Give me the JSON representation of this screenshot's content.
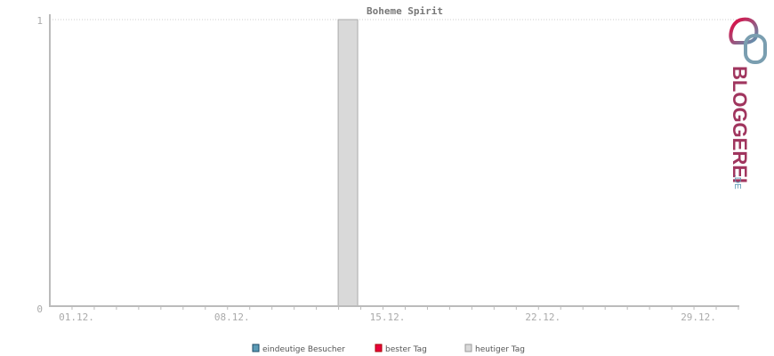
{
  "chart_data": {
    "type": "bar",
    "title": "Boheme Spirit",
    "xlabel": "",
    "ylabel": "",
    "ylim": [
      0,
      1
    ],
    "y_ticks": [
      "0",
      "1"
    ],
    "x_tick_labels": [
      "01.12.",
      "08.12.",
      "15.12.",
      "22.12.",
      "29.12."
    ],
    "x_tick_days": [
      1,
      8,
      15,
      22,
      29
    ],
    "days_in_month": 31,
    "grid": "dotted line at y=1",
    "legend_position": "bottom",
    "legend": [
      {
        "label": "eindeutige Besucher",
        "color": "#5b9ab5"
      },
      {
        "label": "bester Tag",
        "color": "#e8003c"
      },
      {
        "label": "heutiger Tag",
        "color": "#d9d9d9"
      }
    ],
    "series": [
      {
        "name": "heutiger Tag",
        "points": [
          {
            "day": 14,
            "value": 1
          }
        ]
      }
    ]
  },
  "logo": {
    "text": "BLOGGEREI",
    "suffix": ".DE"
  }
}
